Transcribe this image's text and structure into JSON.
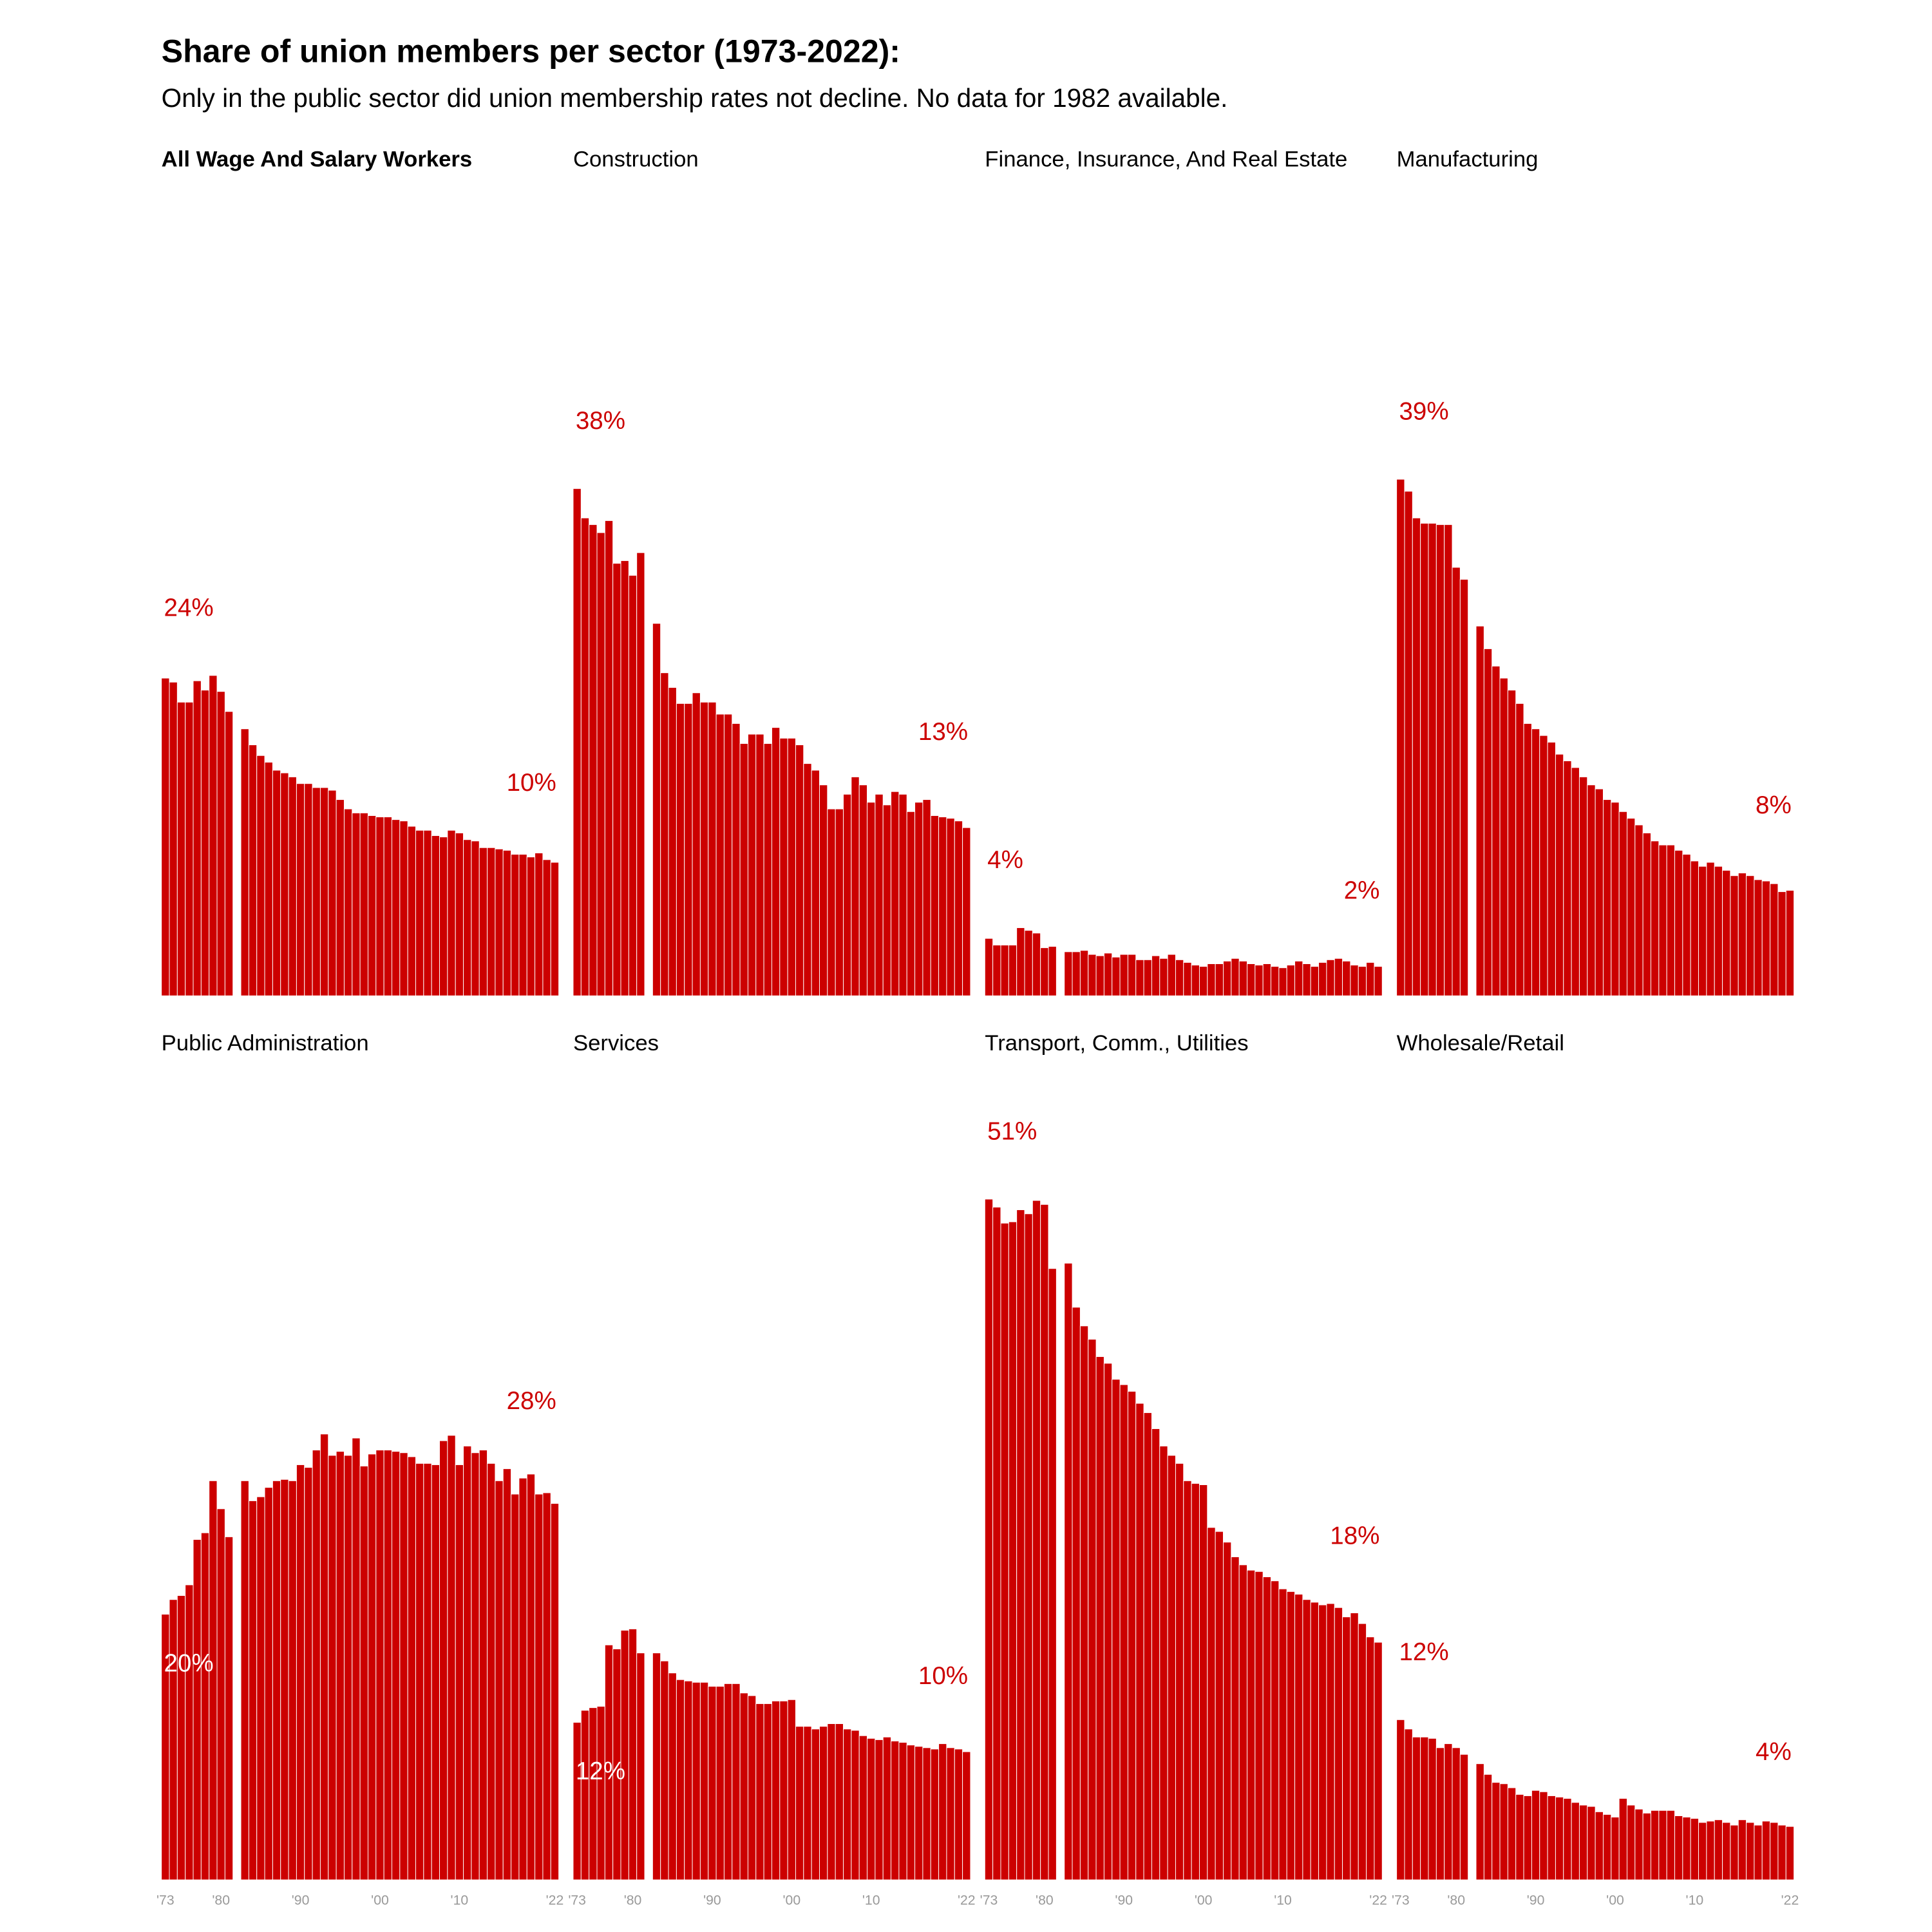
{
  "chart_data": {
    "type": "bar",
    "title": "Share of union members per sector (1973-2022):",
    "subtitle": "Only in the public sector did union membership rates not decline. No data for 1982 available.",
    "x": [
      1973,
      1974,
      1975,
      1976,
      1977,
      1978,
      1979,
      1980,
      1981,
      1982,
      1983,
      1984,
      1985,
      1986,
      1987,
      1988,
      1989,
      1990,
      1991,
      1992,
      1993,
      1994,
      1995,
      1996,
      1997,
      1998,
      1999,
      2000,
      2001,
      2002,
      2003,
      2004,
      2005,
      2006,
      2007,
      2008,
      2009,
      2010,
      2011,
      2012,
      2013,
      2014,
      2015,
      2016,
      2017,
      2018,
      2019,
      2020,
      2021,
      2022
    ],
    "xlim": [
      1973,
      2022
    ],
    "xticks": [
      {
        "value": 1973,
        "label": "'73"
      },
      {
        "value": 1980,
        "label": "'80"
      },
      {
        "value": 1990,
        "label": "'90"
      },
      {
        "value": 2000,
        "label": "'00"
      },
      {
        "value": 2010,
        "label": "'10"
      },
      {
        "value": 2022,
        "label": "'22"
      }
    ],
    "ylim": [
      0,
      60
    ],
    "series": [
      {
        "name": "All Wage And Salary Workers",
        "color": "#cc0000",
        "values": [
          23.8,
          23.5,
          22.0,
          22.0,
          23.6,
          22.9,
          24.0,
          22.8,
          21.3,
          null,
          20.0,
          18.8,
          18.0,
          17.5,
          16.9,
          16.7,
          16.4,
          15.9,
          15.9,
          15.6,
          15.6,
          15.4,
          14.7,
          14.0,
          13.7,
          13.7,
          13.5,
          13.4,
          13.4,
          13.2,
          13.1,
          12.7,
          12.4,
          12.4,
          12.0,
          11.9,
          12.4,
          12.2,
          11.7,
          11.6,
          11.1,
          11.1,
          11.0,
          10.9,
          10.6,
          10.6,
          10.4,
          10.7,
          10.2,
          10.0
        ],
        "value_labels": [
          "24%",
          null,
          null,
          null,
          null,
          null,
          null,
          null,
          null,
          null,
          null,
          null,
          null,
          null,
          null,
          null,
          null,
          null,
          null,
          null,
          null,
          null,
          null,
          null,
          null,
          null,
          null,
          null,
          null,
          null,
          null,
          null,
          null,
          null,
          null,
          null,
          null,
          null,
          null,
          null,
          null,
          null,
          null,
          null,
          null,
          null,
          null,
          null,
          null,
          "10%"
        ]
      },
      {
        "name": "Construction",
        "color": "#cc0000",
        "values": [
          38.0,
          35.8,
          35.3,
          34.7,
          35.6,
          32.4,
          32.6,
          31.5,
          33.2,
          null,
          27.9,
          24.2,
          23.1,
          21.9,
          21.9,
          22.7,
          22.0,
          22.0,
          21.1,
          21.1,
          20.4,
          18.9,
          19.6,
          19.6,
          18.9,
          20.1,
          19.3,
          19.3,
          18.8,
          17.4,
          16.9,
          15.8,
          14.0,
          14.0,
          15.1,
          16.4,
          15.8,
          14.5,
          15.1,
          14.3,
          15.3,
          15.1,
          13.8,
          14.5,
          14.7,
          13.5,
          13.4,
          13.3,
          13.1,
          12.6
        ],
        "value_labels": [
          "38%",
          null,
          null,
          null,
          null,
          null,
          null,
          null,
          null,
          null,
          null,
          null,
          null,
          null,
          null,
          null,
          null,
          null,
          null,
          null,
          null,
          null,
          null,
          null,
          null,
          null,
          null,
          null,
          null,
          null,
          null,
          null,
          null,
          null,
          null,
          null,
          null,
          null,
          null,
          null,
          null,
          null,
          null,
          null,
          null,
          null,
          null,
          null,
          null,
          "13%"
        ]
      },
      {
        "name": "Finance, Insurance, And Real Estate",
        "color": "#cc0000",
        "values": [
          4.3,
          3.8,
          3.8,
          3.8,
          5.1,
          4.9,
          4.7,
          3.6,
          3.7,
          null,
          3.3,
          3.3,
          3.4,
          3.1,
          3.0,
          3.2,
          2.9,
          3.1,
          3.1,
          2.7,
          2.7,
          3.0,
          2.8,
          3.1,
          2.7,
          2.5,
          2.3,
          2.2,
          2.4,
          2.4,
          2.6,
          2.8,
          2.6,
          2.4,
          2.3,
          2.4,
          2.2,
          2.1,
          2.3,
          2.6,
          2.4,
          2.2,
          2.5,
          2.7,
          2.8,
          2.6,
          2.3,
          2.2,
          2.5,
          2.2
        ],
        "value_labels": [
          "4%",
          null,
          null,
          null,
          null,
          null,
          null,
          null,
          null,
          null,
          null,
          null,
          null,
          null,
          null,
          null,
          null,
          null,
          null,
          null,
          null,
          null,
          null,
          null,
          null,
          null,
          null,
          null,
          null,
          null,
          null,
          null,
          null,
          null,
          null,
          null,
          null,
          null,
          null,
          null,
          null,
          null,
          null,
          null,
          null,
          null,
          null,
          null,
          null,
          "2%"
        ]
      },
      {
        "name": "Manufacturing",
        "color": "#cc0000",
        "values": [
          38.7,
          37.8,
          35.8,
          35.4,
          35.4,
          35.3,
          35.3,
          32.1,
          31.2,
          null,
          27.7,
          26.0,
          24.7,
          23.8,
          22.9,
          21.9,
          20.4,
          20.0,
          19.5,
          19.0,
          18.1,
          17.6,
          17.1,
          16.4,
          15.8,
          15.5,
          14.7,
          14.5,
          13.8,
          13.3,
          12.8,
          12.2,
          11.6,
          11.3,
          11.3,
          10.9,
          10.6,
          10.1,
          9.7,
          10.0,
          9.7,
          9.4,
          9.0,
          9.2,
          9.0,
          8.7,
          8.6,
          8.4,
          7.8,
          7.9
        ],
        "value_labels": [
          "39%",
          null,
          null,
          null,
          null,
          null,
          null,
          null,
          null,
          null,
          null,
          null,
          null,
          null,
          null,
          null,
          null,
          null,
          null,
          null,
          null,
          null,
          null,
          null,
          null,
          null,
          null,
          null,
          null,
          null,
          null,
          null,
          null,
          null,
          null,
          null,
          null,
          null,
          null,
          null,
          null,
          null,
          null,
          null,
          null,
          null,
          null,
          null,
          null,
          "8%"
        ]
      },
      {
        "name": "Public Administration",
        "color": "#cc0000",
        "values": [
          19.9,
          21.0,
          21.3,
          22.1,
          25.5,
          26.0,
          29.9,
          27.8,
          25.7,
          null,
          29.9,
          28.4,
          28.7,
          29.4,
          29.9,
          30.0,
          29.9,
          31.1,
          30.9,
          32.2,
          33.4,
          31.8,
          32.1,
          31.8,
          33.1,
          31.0,
          31.9,
          32.2,
          32.2,
          32.1,
          32.0,
          31.7,
          31.2,
          31.2,
          31.1,
          32.9,
          33.3,
          31.1,
          32.5,
          32.0,
          32.2,
          31.2,
          29.9,
          30.8,
          28.9,
          30.1,
          30.4,
          28.9,
          29.0,
          28.2
        ],
        "value_labels": [
          "20%",
          null,
          null,
          null,
          null,
          null,
          null,
          null,
          null,
          null,
          null,
          null,
          null,
          null,
          null,
          null,
          null,
          null,
          null,
          null,
          null,
          null,
          null,
          null,
          null,
          null,
          null,
          null,
          null,
          null,
          null,
          null,
          null,
          null,
          null,
          null,
          null,
          null,
          null,
          null,
          null,
          null,
          null,
          null,
          null,
          null,
          null,
          null,
          null,
          "28%"
        ]
      },
      {
        "name": "Services",
        "color": "#cc0000",
        "values": [
          11.8,
          12.7,
          12.9,
          13.0,
          17.6,
          17.3,
          18.7,
          18.8,
          17.0,
          null,
          17.0,
          16.4,
          15.5,
          15.0,
          14.9,
          14.8,
          14.8,
          14.5,
          14.5,
          14.7,
          14.7,
          14.0,
          13.8,
          13.2,
          13.2,
          13.4,
          13.4,
          13.5,
          11.5,
          11.5,
          11.3,
          11.5,
          11.7,
          11.7,
          11.3,
          11.2,
          10.8,
          10.6,
          10.5,
          10.7,
          10.4,
          10.3,
          10.1,
          10.0,
          9.9,
          9.8,
          10.2,
          9.9,
          9.8,
          9.6
        ],
        "value_labels": [
          "12%",
          null,
          null,
          null,
          null,
          null,
          null,
          null,
          null,
          null,
          null,
          null,
          null,
          null,
          null,
          null,
          null,
          null,
          null,
          null,
          null,
          null,
          null,
          null,
          null,
          null,
          null,
          null,
          null,
          null,
          null,
          null,
          null,
          null,
          null,
          null,
          null,
          null,
          null,
          null,
          null,
          null,
          null,
          null,
          null,
          null,
          null,
          null,
          null,
          "10%"
        ]
      },
      {
        "name": "Transport, Comm., Utilities",
        "color": "#cc0000",
        "values": [
          51.0,
          50.4,
          49.2,
          49.3,
          50.2,
          49.9,
          50.9,
          50.6,
          45.8,
          null,
          46.2,
          42.9,
          41.5,
          40.5,
          39.2,
          38.7,
          37.5,
          37.1,
          36.6,
          35.7,
          35.0,
          33.8,
          32.5,
          31.8,
          31.2,
          29.9,
          29.7,
          29.6,
          26.4,
          26.1,
          25.3,
          24.2,
          23.6,
          23.2,
          23.1,
          22.7,
          22.4,
          21.8,
          21.6,
          21.4,
          21.0,
          20.8,
          20.6,
          20.7,
          20.4,
          19.7,
          20.0,
          19.2,
          18.2,
          17.8
        ],
        "value_labels": [
          "51%",
          null,
          null,
          null,
          null,
          null,
          null,
          null,
          null,
          null,
          null,
          null,
          null,
          null,
          null,
          null,
          null,
          null,
          null,
          null,
          null,
          null,
          null,
          null,
          null,
          null,
          null,
          null,
          null,
          null,
          null,
          null,
          null,
          null,
          null,
          null,
          null,
          null,
          null,
          null,
          null,
          null,
          null,
          null,
          null,
          null,
          null,
          null,
          null,
          "18%"
        ]
      },
      {
        "name": "Wholesale/Retail",
        "color": "#cc0000",
        "values": [
          12.0,
          11.3,
          10.7,
          10.7,
          10.6,
          9.9,
          10.2,
          9.9,
          9.4,
          null,
          8.7,
          7.9,
          7.3,
          7.2,
          6.9,
          6.4,
          6.3,
          6.7,
          6.6,
          6.3,
          6.2,
          6.1,
          5.8,
          5.6,
          5.5,
          5.1,
          4.9,
          4.7,
          6.1,
          5.6,
          5.3,
          5.0,
          5.2,
          5.2,
          5.2,
          4.8,
          4.7,
          4.6,
          4.3,
          4.4,
          4.5,
          4.3,
          4.1,
          4.5,
          4.3,
          4.1,
          4.4,
          4.3,
          4.1,
          4.0
        ],
        "value_labels": [
          "12%",
          null,
          null,
          null,
          null,
          null,
          null,
          null,
          null,
          null,
          null,
          null,
          null,
          null,
          null,
          null,
          null,
          null,
          null,
          null,
          null,
          null,
          null,
          null,
          null,
          null,
          null,
          null,
          null,
          null,
          null,
          null,
          null,
          null,
          null,
          null,
          null,
          null,
          null,
          null,
          null,
          null,
          null,
          null,
          null,
          null,
          null,
          null,
          null,
          "4%"
        ]
      }
    ]
  }
}
